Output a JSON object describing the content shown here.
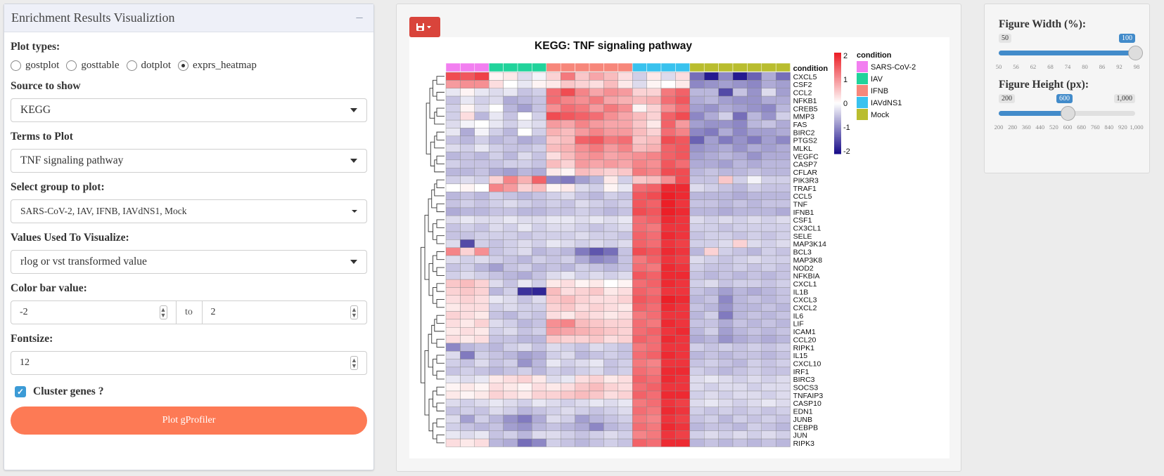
{
  "left": {
    "title": "Enrichment Results Visualiztion",
    "plot_types_label": "Plot types:",
    "plot_types": [
      {
        "label": "gostplot",
        "selected": false
      },
      {
        "label": "gosttable",
        "selected": false
      },
      {
        "label": "dotplot",
        "selected": false
      },
      {
        "label": "exprs_heatmap",
        "selected": true
      }
    ],
    "source_label": "Source to show",
    "source_value": "KEGG",
    "terms_label": "Terms to Plot",
    "terms_value": "TNF signaling pathway",
    "group_label": "Select group to plot:",
    "group_value": "SARS-CoV-2, IAV, IFNB, IAVdNS1, Mock",
    "values_label": "Values Used To Visualize:",
    "values_value": "rlog or vst transformed value",
    "colorbar_label": "Color bar value:",
    "colorbar_min": "-2",
    "colorbar_to": "to",
    "colorbar_max": "2",
    "fontsize_label": "Fontsize:",
    "fontsize_value": "12",
    "cluster_label": "Cluster genes ?",
    "cluster_checked": true,
    "plot_button": "Plot gProfiler"
  },
  "right": {
    "width_label": "Figure Width (%):",
    "width_min": "50",
    "width_value": "100",
    "width_ticks": [
      "50",
      "56",
      "62",
      "68",
      "74",
      "80",
      "86",
      "92",
      "98"
    ],
    "height_label": "Figure Height (px):",
    "height_min": "200",
    "height_value": "600",
    "height_max": "1,000",
    "height_ticks": [
      "200",
      "280",
      "360",
      "440",
      "520",
      "600",
      "680",
      "760",
      "840",
      "920",
      "1,000"
    ]
  },
  "colors": {
    "accent_button": "#fd7a55",
    "save_button": "#d9443b",
    "slider_blue": "#428bca"
  },
  "chart_data": {
    "type": "heatmap",
    "title": "KEGG: TNF signaling pathway",
    "annotation_title": "condition",
    "legend_title": "condition",
    "groups": [
      {
        "name": "SARS-CoV-2",
        "color": "#f27ff0",
        "n": 3
      },
      {
        "name": "IAV",
        "color": "#21d39b",
        "n": 4
      },
      {
        "name": "IFNB",
        "color": "#f7877b",
        "n": 6
      },
      {
        "name": "IAVdNS1",
        "color": "#39c2ee",
        "n": 4
      },
      {
        "name": "Mock",
        "color": "#b9bd2f",
        "n": 7
      }
    ],
    "colorscale": {
      "min": -2,
      "max": 2,
      "ticks": [
        "2",
        "1",
        "0",
        "-1",
        "-2"
      ],
      "colors": [
        "#1a0e8a",
        "#ffffff",
        "#ec1f27"
      ]
    },
    "genes": [
      "CXCL5",
      "CSF2",
      "CCL2",
      "NFKB1",
      "CREB5",
      "MMP3",
      "FAS",
      "BIRC2",
      "PTGS2",
      "MLKL",
      "VEGFC",
      "CASP7",
      "CFLAR",
      "PIK3R3",
      "TRAF1",
      "CCL5",
      "TNF",
      "IFNB1",
      "CSF1",
      "CX3CL1",
      "SELE",
      "MAP3K14",
      "BCL3",
      "MAP3K8",
      "NOD2",
      "NFKBIA",
      "CXCL1",
      "IL1B",
      "CXCL3",
      "CXCL2",
      "IL6",
      "LIF",
      "ICAM1",
      "CCL20",
      "RIPK1",
      "IL15",
      "CXCL10",
      "IRF1",
      "BIRC3",
      "SOCS3",
      "TNFAIP3",
      "CASP10",
      "EDN1",
      "JUNB",
      "CEBPB",
      "JUN",
      "RIPK3"
    ],
    "values": [
      [
        1.6,
        1.5,
        1.7,
        0.1,
        0.2,
        -0.3,
        -0.1,
        0.4,
        1.2,
        0.5,
        0.8,
        0.6,
        0.3,
        -0.4,
        0.2,
        -0.3,
        0.3,
        -1.2,
        -1.9,
        -1.0,
        -1.9,
        -1.3,
        -0.7,
        -1.2
      ],
      [
        0.9,
        1.0,
        1.0,
        0.3,
        0.0,
        -0.2,
        0.1,
        0.2,
        0.5,
        0.4,
        0.3,
        0.6,
        0.2,
        -0.3,
        0.1,
        0.0,
        0.2,
        -1.0,
        -0.9,
        -0.8,
        -0.9,
        -1.0,
        -0.7,
        -0.8
      ],
      [
        -0.2,
        0.1,
        -0.2,
        -0.3,
        -0.2,
        -0.5,
        -0.4,
        1.3,
        1.6,
        1.1,
        0.8,
        1.0,
        0.9,
        0.4,
        0.4,
        1.2,
        1.4,
        -0.6,
        -0.6,
        -1.5,
        -0.5,
        -0.9,
        -0.3,
        -0.8
      ],
      [
        -0.5,
        -0.2,
        -0.4,
        -0.3,
        -0.7,
        -0.6,
        -0.5,
        1.3,
        1.1,
        1.0,
        1.2,
        0.8,
        0.7,
        0.6,
        0.7,
        1.3,
        1.5,
        -0.7,
        -0.6,
        -0.8,
        -0.9,
        -0.9,
        -0.7,
        -0.7
      ],
      [
        -0.4,
        0.1,
        -0.3,
        0.0,
        -0.6,
        -0.8,
        -0.5,
        1.0,
        1.3,
        1.2,
        0.9,
        1.2,
        1.0,
        0.1,
        0.4,
        1.0,
        1.3,
        -0.8,
        -0.9,
        -0.7,
        -0.8,
        -0.9,
        -1.0,
        -0.6
      ],
      [
        -0.4,
        0.3,
        -0.6,
        -0.2,
        -0.5,
        0.0,
        -0.4,
        1.6,
        1.5,
        1.4,
        1.3,
        1.0,
        0.8,
        0.6,
        0.4,
        1.4,
        1.6,
        -1.0,
        -0.7,
        -0.4,
        -1.2,
        -0.6,
        -0.9,
        -0.4
      ],
      [
        -0.3,
        -0.1,
        0.0,
        -0.2,
        -0.4,
        -0.2,
        -0.3,
        0.9,
        0.8,
        1.1,
        0.9,
        0.8,
        0.8,
        0.5,
        0.2,
        1.4,
        0.9,
        -0.8,
        -0.9,
        -0.9,
        -1.0,
        -0.6,
        -0.5,
        -0.7
      ],
      [
        -0.2,
        -0.7,
        -0.1,
        -0.4,
        -0.6,
        0.0,
        -0.4,
        0.7,
        0.6,
        0.9,
        1.1,
        0.9,
        0.9,
        0.6,
        0.4,
        1.3,
        1.1,
        -1.0,
        -1.1,
        -0.7,
        -1.0,
        -0.8,
        -0.8,
        -0.7
      ],
      [
        -0.5,
        -0.6,
        -0.4,
        -0.6,
        -0.5,
        -0.7,
        -0.6,
        0.5,
        0.6,
        1.4,
        1.5,
        1.2,
        1.3,
        0.5,
        0.6,
        1.6,
        1.5,
        -1.3,
        -0.8,
        -1.1,
        -0.9,
        -1.1,
        -0.8,
        -1.0
      ],
      [
        -0.3,
        -0.4,
        -0.2,
        -0.4,
        -0.5,
        -0.5,
        -0.4,
        0.6,
        0.7,
        1.0,
        1.2,
        0.9,
        1.1,
        0.6,
        0.7,
        1.4,
        1.5,
        -0.9,
        -0.8,
        -0.7,
        -0.9,
        -0.7,
        -0.8,
        -0.7
      ],
      [
        -0.6,
        -0.5,
        -0.6,
        -0.4,
        -0.6,
        -0.3,
        -0.5,
        0.3,
        0.6,
        0.9,
        1.0,
        0.8,
        0.9,
        1.0,
        1.1,
        1.4,
        1.5,
        -0.8,
        -0.7,
        -0.6,
        -0.7,
        -0.9,
        -0.7,
        -0.7
      ],
      [
        -0.4,
        -0.5,
        -0.5,
        -0.5,
        -0.4,
        -0.4,
        -0.5,
        0.6,
        0.4,
        0.9,
        0.8,
        0.9,
        0.8,
        1.1,
        1.0,
        1.5,
        1.3,
        -0.7,
        -0.7,
        -0.8,
        -0.6,
        -0.7,
        -0.6,
        -0.6
      ],
      [
        -0.6,
        -0.6,
        -0.5,
        -0.7,
        -0.8,
        -0.6,
        -0.7,
        0.2,
        0.1,
        0.6,
        0.5,
        0.4,
        0.5,
        1.2,
        1.1,
        1.6,
        1.6,
        -0.6,
        -0.5,
        -0.6,
        -0.6,
        -0.5,
        -0.6,
        -0.6
      ],
      [
        -0.4,
        -0.3,
        -0.4,
        0.4,
        1.1,
        0.7,
        1.4,
        -1.0,
        -1.1,
        -0.8,
        -0.6,
        0.2,
        -0.4,
        0.5,
        0.6,
        1.0,
        1.6,
        -0.5,
        -0.5,
        0.5,
        -0.4,
        -0.1,
        -0.4,
        -0.4
      ],
      [
        0.0,
        0.1,
        0.0,
        1.1,
        0.9,
        0.4,
        0.6,
        0.1,
        0.2,
        -0.3,
        -0.4,
        0.1,
        -0.2,
        1.3,
        1.4,
        1.9,
        1.9,
        -0.3,
        -0.4,
        -0.5,
        -0.6,
        -0.4,
        -0.5,
        -0.5
      ],
      [
        -0.6,
        -0.5,
        -0.6,
        -0.4,
        -0.5,
        -0.6,
        -0.5,
        -0.4,
        -0.3,
        -0.5,
        -0.6,
        -0.4,
        -0.5,
        1.5,
        1.6,
        2.0,
        1.9,
        -0.6,
        -0.6,
        -0.6,
        -0.7,
        -0.6,
        -0.6,
        -0.6
      ],
      [
        -0.5,
        -0.4,
        -0.5,
        -0.4,
        -0.3,
        -0.4,
        -0.5,
        -0.4,
        -0.5,
        -0.3,
        -0.4,
        -0.5,
        -0.4,
        1.5,
        1.4,
        2.0,
        1.8,
        -0.5,
        -0.5,
        -0.6,
        -0.5,
        -0.6,
        -0.5,
        -0.5
      ],
      [
        -0.7,
        -0.6,
        -0.6,
        -0.5,
        -0.5,
        -0.6,
        -0.6,
        -0.5,
        -0.5,
        -0.4,
        -0.5,
        -0.6,
        -0.5,
        1.6,
        1.5,
        2.0,
        1.9,
        -0.6,
        -0.6,
        -0.7,
        -0.6,
        -0.6,
        -0.6,
        -0.7
      ],
      [
        -0.3,
        -0.2,
        -0.3,
        -0.3,
        -0.2,
        -0.3,
        -0.3,
        -0.2,
        -0.2,
        -0.3,
        -0.2,
        -0.3,
        -0.2,
        1.3,
        1.4,
        1.9,
        1.8,
        -0.3,
        -0.4,
        -0.3,
        -0.4,
        -0.3,
        -0.4,
        -0.3
      ],
      [
        -0.5,
        -0.4,
        -0.5,
        -0.3,
        -0.4,
        -0.2,
        -0.4,
        -0.3,
        -0.3,
        -0.4,
        -0.5,
        -0.4,
        -0.3,
        1.3,
        1.2,
        1.8,
        1.8,
        -0.4,
        -0.4,
        -0.5,
        -0.4,
        -0.4,
        -0.4,
        -0.4
      ],
      [
        -0.5,
        -0.5,
        -0.4,
        -0.4,
        -0.4,
        -0.5,
        -0.4,
        -0.4,
        -0.4,
        -0.3,
        -0.4,
        -0.4,
        -0.5,
        1.4,
        1.3,
        1.9,
        1.8,
        -0.5,
        -0.4,
        -0.4,
        -0.5,
        -0.4,
        -0.5,
        -0.4
      ],
      [
        -0.3,
        -1.5,
        -0.4,
        -0.5,
        -0.4,
        -0.3,
        -0.4,
        -0.2,
        -0.3,
        -0.4,
        -0.3,
        -0.4,
        -0.3,
        1.4,
        1.3,
        1.8,
        1.7,
        -0.4,
        -0.4,
        -0.3,
        0.4,
        -0.3,
        -0.4,
        -0.3
      ],
      [
        1.1,
        0.4,
        1.0,
        -0.5,
        -0.4,
        -0.3,
        -0.6,
        -0.5,
        -0.6,
        -1.1,
        -1.4,
        -1.2,
        -0.5,
        1.6,
        1.5,
        1.9,
        1.8,
        -0.6,
        0.4,
        -0.4,
        -0.5,
        -0.6,
        -0.4,
        -0.5
      ],
      [
        -0.3,
        -0.4,
        -0.3,
        -0.4,
        -0.5,
        -0.6,
        -0.4,
        -0.5,
        -0.4,
        -0.7,
        -1.0,
        -0.9,
        -0.5,
        1.2,
        1.4,
        1.8,
        1.7,
        -0.3,
        -0.4,
        -0.5,
        -0.4,
        -0.3,
        -0.4,
        -0.4
      ],
      [
        -0.5,
        -0.4,
        -0.6,
        -0.8,
        -0.5,
        -0.4,
        -0.6,
        -0.5,
        -0.6,
        -0.4,
        -0.5,
        -0.6,
        -0.5,
        1.3,
        1.2,
        1.9,
        1.8,
        -0.4,
        -0.5,
        -0.5,
        -0.4,
        -0.5,
        -0.4,
        -0.5
      ],
      [
        -0.4,
        -0.3,
        -0.4,
        -0.5,
        -0.6,
        -0.7,
        -0.5,
        -0.3,
        -0.2,
        -0.4,
        -0.3,
        -0.4,
        -0.3,
        1.5,
        1.4,
        1.9,
        1.9,
        -0.5,
        -0.6,
        -0.5,
        -0.6,
        -0.5,
        -0.6,
        -0.5
      ],
      [
        0.5,
        0.6,
        0.4,
        -0.3,
        -0.5,
        -0.2,
        -0.4,
        0.2,
        0.3,
        0.1,
        0.2,
        0.0,
        0.1,
        1.3,
        1.4,
        1.9,
        1.8,
        -0.4,
        -0.3,
        -0.5,
        -0.4,
        -0.4,
        -0.5,
        -0.4
      ],
      [
        0.4,
        0.5,
        0.4,
        -0.6,
        -0.4,
        -1.7,
        -1.8,
        0.6,
        0.3,
        0.4,
        0.5,
        0.2,
        0.3,
        1.4,
        1.3,
        1.8,
        1.8,
        -0.5,
        -0.6,
        -0.8,
        -0.6,
        -0.7,
        -0.6,
        -0.5
      ],
      [
        0.3,
        0.4,
        0.3,
        -0.2,
        -0.3,
        -0.5,
        -0.3,
        0.5,
        0.6,
        0.4,
        0.3,
        0.3,
        0.4,
        1.5,
        1.4,
        2.0,
        1.9,
        -0.6,
        -0.5,
        -1.0,
        -0.6,
        -0.5,
        -0.6,
        -0.5
      ],
      [
        0.2,
        0.3,
        0.3,
        -0.4,
        -0.3,
        -0.4,
        -0.4,
        0.4,
        0.5,
        0.3,
        0.4,
        0.3,
        0.2,
        1.4,
        1.3,
        1.9,
        1.8,
        -0.5,
        -0.6,
        -0.9,
        -0.6,
        -0.6,
        -0.5,
        -0.6
      ],
      [
        0.4,
        0.3,
        0.2,
        -0.5,
        -0.6,
        -0.4,
        -0.5,
        0.3,
        0.2,
        0.4,
        0.3,
        0.2,
        0.3,
        1.2,
        1.3,
        1.8,
        1.8,
        -0.6,
        -0.4,
        -1.1,
        -0.6,
        -0.5,
        -0.6,
        -0.5
      ],
      [
        0.3,
        0.2,
        0.4,
        -0.3,
        -0.4,
        -0.6,
        -0.5,
        1.0,
        1.1,
        0.6,
        0.5,
        0.4,
        0.4,
        1.3,
        1.2,
        1.9,
        1.8,
        -0.5,
        -0.5,
        -0.7,
        -0.5,
        -0.6,
        -0.5,
        -0.6
      ],
      [
        0.2,
        0.3,
        0.2,
        -0.4,
        -0.3,
        -0.5,
        -0.4,
        0.9,
        0.8,
        0.7,
        0.6,
        0.5,
        0.4,
        1.3,
        1.4,
        1.8,
        1.9,
        -0.6,
        -0.4,
        -0.8,
        -0.6,
        -0.5,
        -0.6,
        -0.5
      ],
      [
        0.3,
        0.2,
        0.3,
        -0.5,
        -0.5,
        -0.6,
        -0.6,
        0.5,
        0.4,
        0.4,
        0.5,
        0.3,
        0.4,
        1.4,
        1.3,
        1.9,
        1.8,
        -0.7,
        -0.6,
        -0.9,
        -0.7,
        -0.6,
        -0.7,
        -0.6
      ],
      [
        -1.0,
        -0.6,
        -0.5,
        -0.6,
        -0.4,
        -0.3,
        -0.5,
        -0.3,
        -0.4,
        -0.5,
        -0.3,
        -0.4,
        -0.5,
        1.2,
        1.3,
        1.8,
        1.8,
        -0.4,
        -0.5,
        -0.4,
        -0.5,
        -0.4,
        -0.5,
        -0.4
      ],
      [
        -0.3,
        -1.1,
        -0.4,
        -0.5,
        -0.6,
        -0.8,
        -0.7,
        -0.4,
        -0.3,
        -0.6,
        -0.5,
        -0.4,
        -0.5,
        1.3,
        1.4,
        1.9,
        1.8,
        -0.6,
        -0.5,
        -0.6,
        -0.5,
        -0.5,
        -0.6,
        -0.5
      ],
      [
        -0.4,
        -0.5,
        -0.3,
        -0.5,
        -0.4,
        -0.9,
        -0.6,
        -0.2,
        -0.4,
        -0.3,
        -0.2,
        -0.5,
        -0.4,
        1.2,
        1.1,
        1.8,
        1.8,
        -0.5,
        -0.4,
        -0.5,
        -0.6,
        -0.4,
        -0.5,
        -0.4
      ],
      [
        -0.5,
        -0.4,
        -0.5,
        -0.6,
        -0.5,
        -0.4,
        -0.6,
        -0.4,
        -0.5,
        -0.4,
        -0.3,
        -0.5,
        -0.4,
        1.3,
        1.2,
        1.9,
        1.9,
        -0.4,
        -0.5,
        -0.6,
        -0.5,
        -0.4,
        -0.5,
        -0.5
      ],
      [
        -0.2,
        -0.3,
        -0.2,
        0.2,
        0.3,
        0.4,
        0.2,
        -0.3,
        -0.2,
        0.3,
        0.4,
        0.2,
        0.3,
        1.4,
        1.3,
        1.9,
        1.8,
        -0.3,
        -0.2,
        -0.3,
        -0.4,
        -0.3,
        -0.4,
        -0.3
      ],
      [
        0.1,
        0.2,
        0.1,
        0.3,
        0.2,
        0.1,
        0.3,
        0.2,
        0.3,
        0.5,
        0.6,
        0.4,
        0.3,
        1.3,
        1.4,
        1.8,
        1.8,
        -0.3,
        -0.4,
        -0.3,
        -0.3,
        -0.4,
        -0.3,
        -0.3
      ],
      [
        0.2,
        0.1,
        0.2,
        0.4,
        0.3,
        0.2,
        0.4,
        0.4,
        0.5,
        0.6,
        0.5,
        0.3,
        0.4,
        1.4,
        1.3,
        1.9,
        1.9,
        -0.4,
        -0.3,
        -0.4,
        -0.3,
        -0.3,
        -0.4,
        -0.3
      ],
      [
        -0.3,
        -0.4,
        -0.3,
        -0.2,
        -0.3,
        -0.4,
        -0.2,
        -0.3,
        -0.4,
        -0.3,
        -0.2,
        -0.3,
        -0.2,
        1.2,
        1.3,
        1.8,
        1.7,
        -0.3,
        -0.2,
        -0.3,
        -0.4,
        -0.3,
        -0.2,
        -0.3
      ],
      [
        -0.5,
        -0.4,
        -0.5,
        -0.3,
        -0.4,
        -0.6,
        -0.5,
        -0.4,
        -0.3,
        -0.4,
        -0.5,
        -0.4,
        -0.3,
        1.3,
        1.2,
        1.9,
        1.8,
        -0.4,
        -0.5,
        -0.4,
        -0.5,
        -0.4,
        -0.5,
        -0.4
      ],
      [
        -0.3,
        -0.8,
        -0.4,
        -0.6,
        -0.9,
        -1.1,
        -0.7,
        -0.3,
        -0.4,
        -0.8,
        -0.6,
        -0.5,
        -0.4,
        1.2,
        1.1,
        1.8,
        1.7,
        -0.5,
        -0.4,
        -0.6,
        -0.4,
        -0.5,
        -0.4,
        -0.5
      ],
      [
        -0.4,
        -0.5,
        -0.6,
        -0.5,
        -0.8,
        -0.9,
        -0.6,
        -0.5,
        -0.6,
        -0.7,
        -1.0,
        -0.6,
        -0.5,
        1.3,
        1.2,
        1.9,
        1.8,
        -0.6,
        -0.5,
        -0.5,
        -0.6,
        -0.4,
        -0.5,
        -0.6
      ],
      [
        -0.2,
        -0.3,
        -0.2,
        -0.5,
        -0.4,
        -0.6,
        -0.3,
        -0.3,
        -0.4,
        -0.5,
        -0.4,
        -0.3,
        -0.4,
        1.1,
        1.2,
        1.8,
        1.7,
        -0.4,
        -0.3,
        -0.4,
        -0.3,
        -0.4,
        -0.3,
        -0.4
      ],
      [
        0.3,
        0.2,
        0.3,
        -0.6,
        -0.7,
        -1.2,
        -1.0,
        -0.4,
        -0.5,
        -0.6,
        -0.5,
        -0.4,
        -0.5,
        1.4,
        1.3,
        1.9,
        1.9,
        -0.6,
        -0.5,
        -0.6,
        -0.5,
        -0.6,
        -0.5,
        -0.6
      ]
    ]
  }
}
